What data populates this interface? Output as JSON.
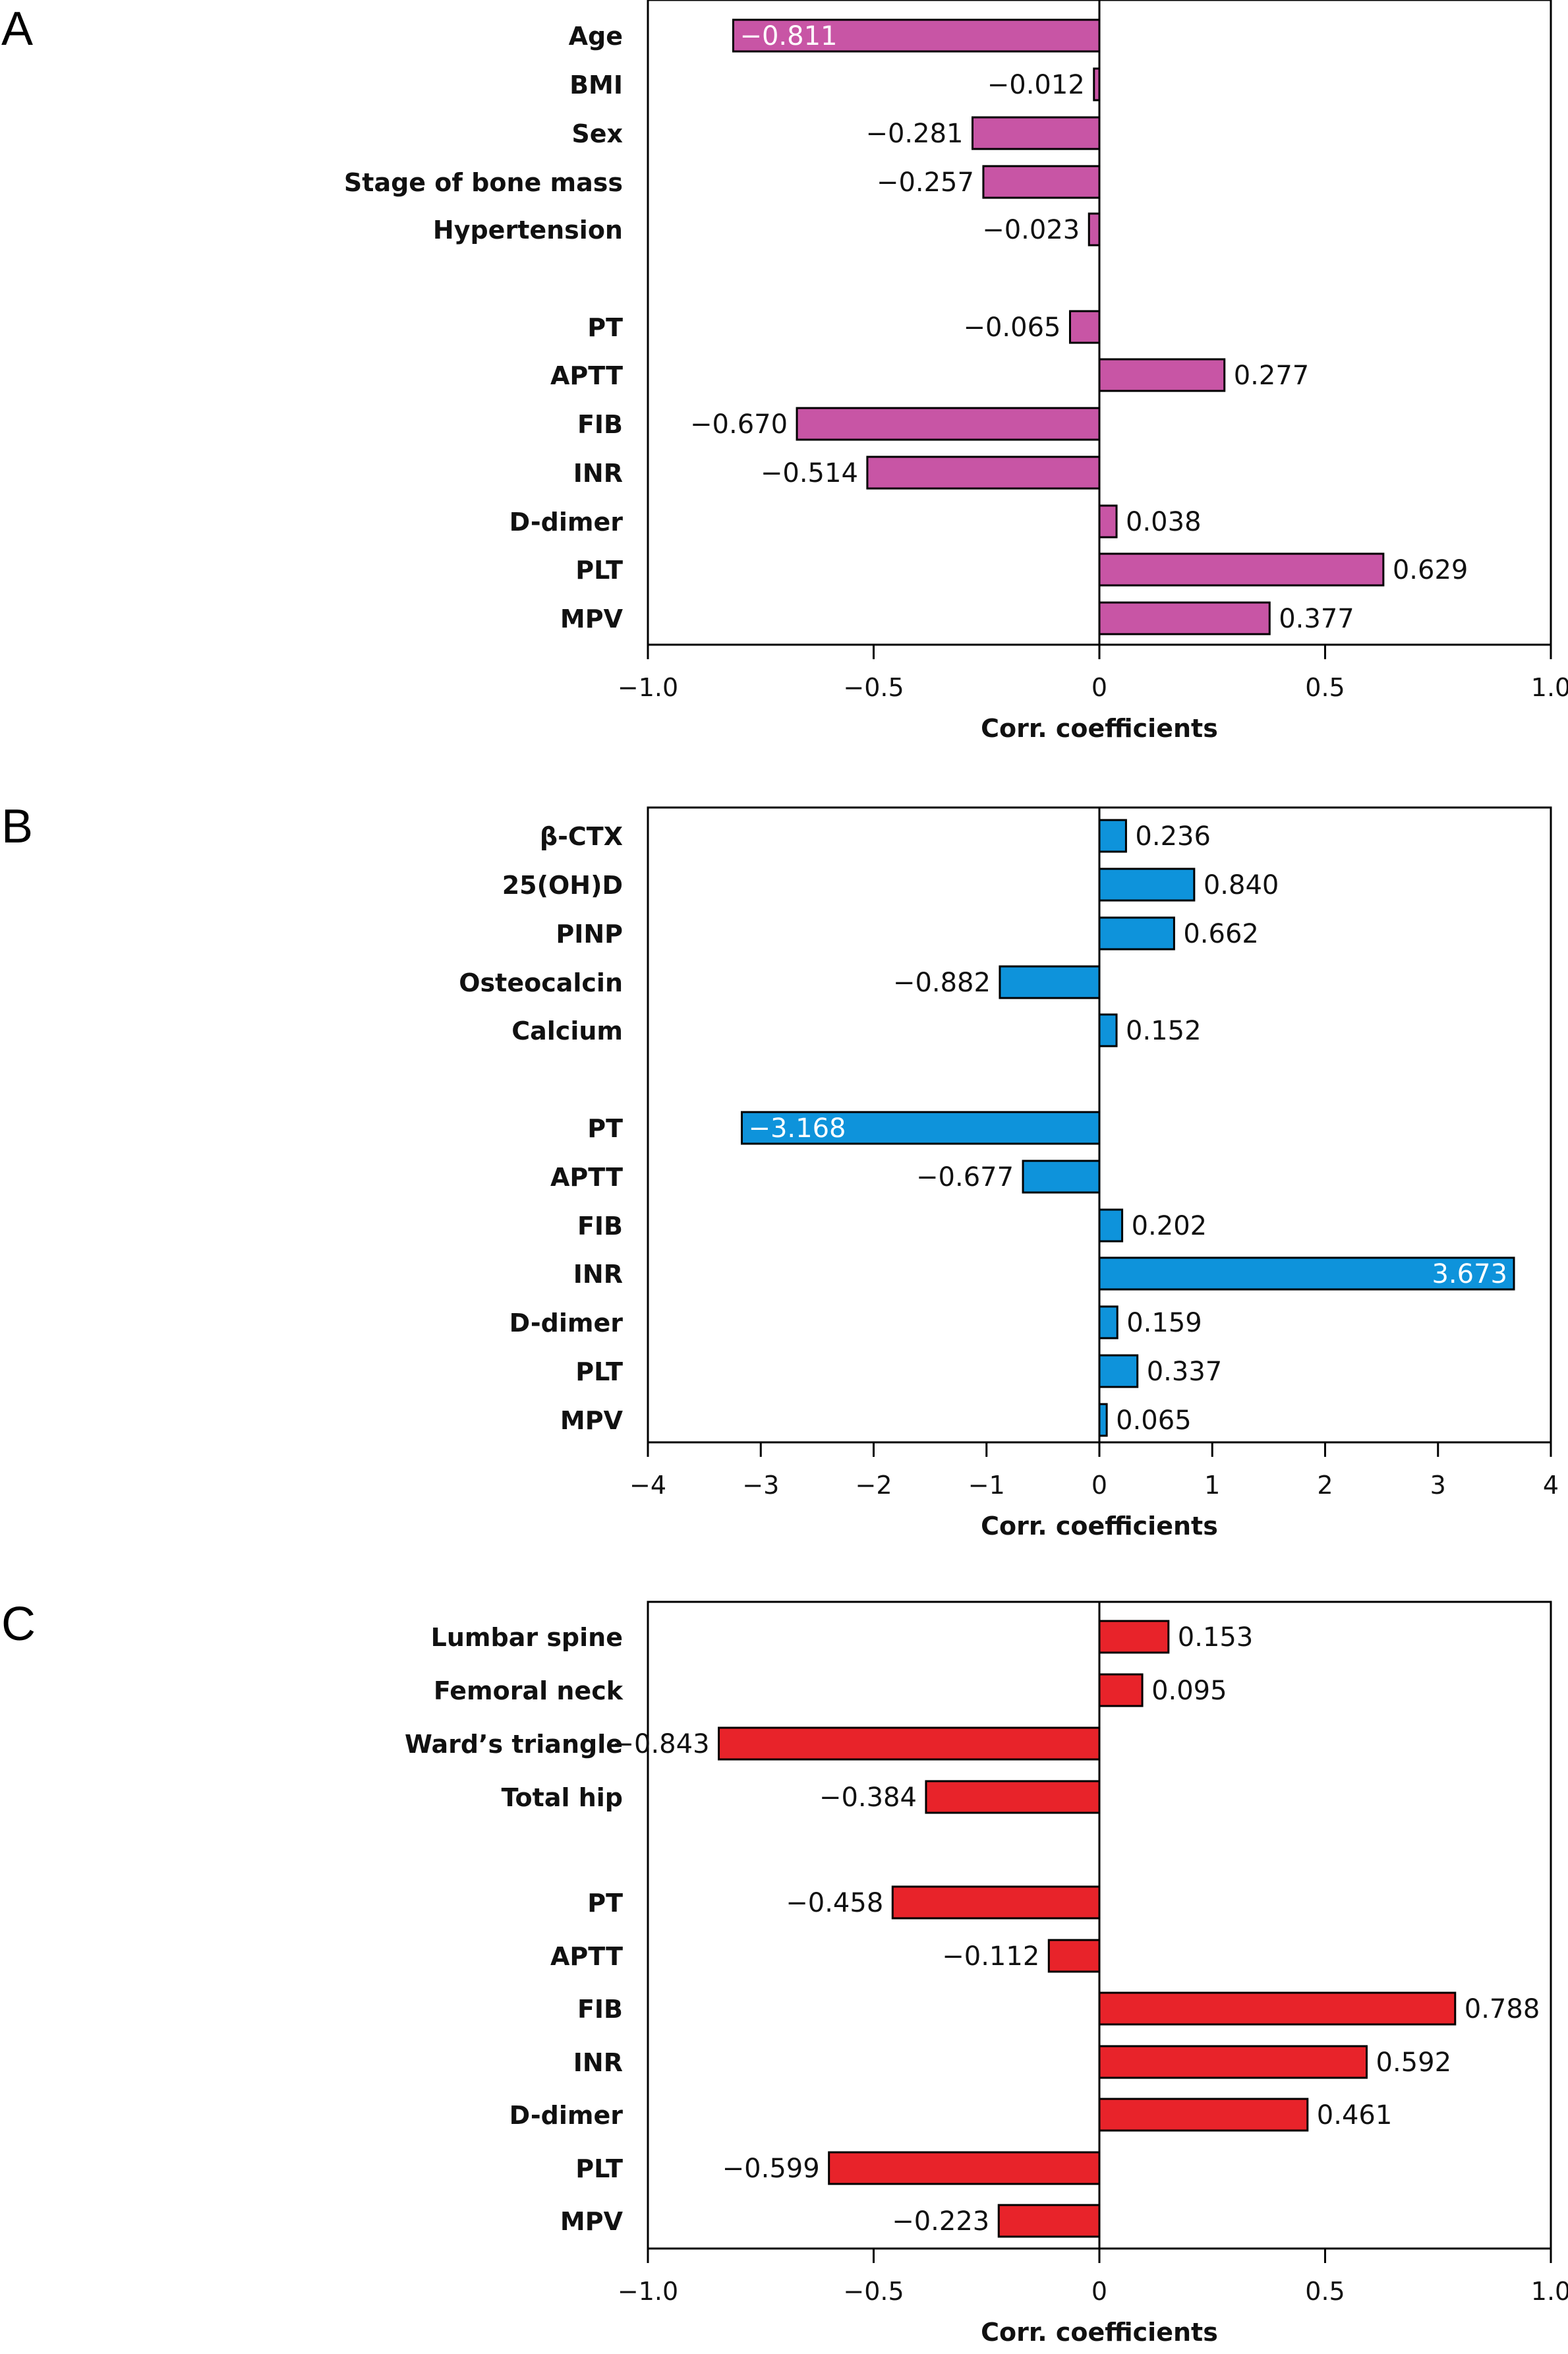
{
  "chart_data": [
    {
      "type": "bar",
      "orientation": "horizontal",
      "panel": "A",
      "color": "#C855A5",
      "xlabel": "Corr. coefficients",
      "xlim": [
        -1.0,
        1.0
      ],
      "xticks": [
        -1.0,
        -0.5,
        0,
        0.5,
        1.0
      ],
      "xtick_labels": [
        "−1.0",
        "−0.5",
        "0",
        "0.5",
        "1.0"
      ],
      "grid": false,
      "categories": [
        "Age",
        "BMI",
        "Sex",
        "Stage of bone mass",
        "Hypertension",
        "PT",
        "APTT",
        "FIB",
        "INR",
        "D-dimer",
        "PLT",
        "MPV"
      ],
      "values": [
        -0.811,
        -0.012,
        -0.281,
        -0.257,
        -0.023,
        -0.065,
        0.277,
        -0.67,
        -0.514,
        0.038,
        0.629,
        0.377
      ],
      "value_labels": [
        "−0.811",
        "−0.012",
        "−0.281",
        "−0.257",
        "−0.023",
        "−0.065",
        "0.277",
        "−0.670",
        "−0.514",
        "0.038",
        "0.629",
        "0.377"
      ],
      "inside_labels": [
        "Age"
      ]
    },
    {
      "type": "bar",
      "orientation": "horizontal",
      "panel": "B",
      "color": "#0E93DB",
      "xlabel": "Corr. coefficients",
      "xlim": [
        -4,
        4
      ],
      "xticks": [
        -4,
        -3,
        -2,
        -1,
        0,
        1,
        2,
        3,
        4
      ],
      "xtick_labels": [
        "−4",
        "−3",
        "−2",
        "−1",
        "0",
        "1",
        "2",
        "3",
        "4"
      ],
      "grid": false,
      "categories": [
        "β-CTX",
        "25(OH)D",
        "PINP",
        "Osteocalcin",
        "Calcium",
        "PT",
        "APTT",
        "FIB",
        "INR",
        "D-dimer",
        "PLT",
        "MPV"
      ],
      "values": [
        0.236,
        0.84,
        0.662,
        -0.882,
        0.152,
        -3.168,
        -0.677,
        0.202,
        3.673,
        0.159,
        0.337,
        0.065
      ],
      "value_labels": [
        "0.236",
        "0.840",
        "0.662",
        "−0.882",
        "0.152",
        "−3.168",
        "−0.677",
        "0.202",
        "3.673",
        "0.159",
        "0.337",
        "0.065"
      ],
      "inside_labels": [
        "PT",
        "INR"
      ]
    },
    {
      "type": "bar",
      "orientation": "horizontal",
      "panel": "C",
      "color": "#E8232A",
      "xlabel": "Corr. coefficients",
      "xlim": [
        -1.0,
        1.0
      ],
      "xticks": [
        -1.0,
        -0.5,
        0,
        0.5,
        1.0
      ],
      "xtick_labels": [
        "−1.0",
        "−0.5",
        "0",
        "0.5",
        "1.0"
      ],
      "grid": false,
      "categories": [
        "Lumbar spine",
        "Femoral neck",
        "Ward’s triangle",
        "Total hip",
        "PT",
        "APTT",
        "FIB",
        "INR",
        "D-dimer",
        "PLT",
        "MPV"
      ],
      "values": [
        0.153,
        0.095,
        -0.843,
        -0.384,
        -0.458,
        -0.112,
        0.788,
        0.592,
        0.461,
        -0.599,
        -0.223
      ],
      "value_labels": [
        "0.153",
        "0.095",
        "−0.843",
        "−0.384",
        "−0.458",
        "−0.112",
        "0.788",
        "0.592",
        "0.461",
        "−0.599",
        "−0.223"
      ],
      "inside_labels": []
    }
  ]
}
